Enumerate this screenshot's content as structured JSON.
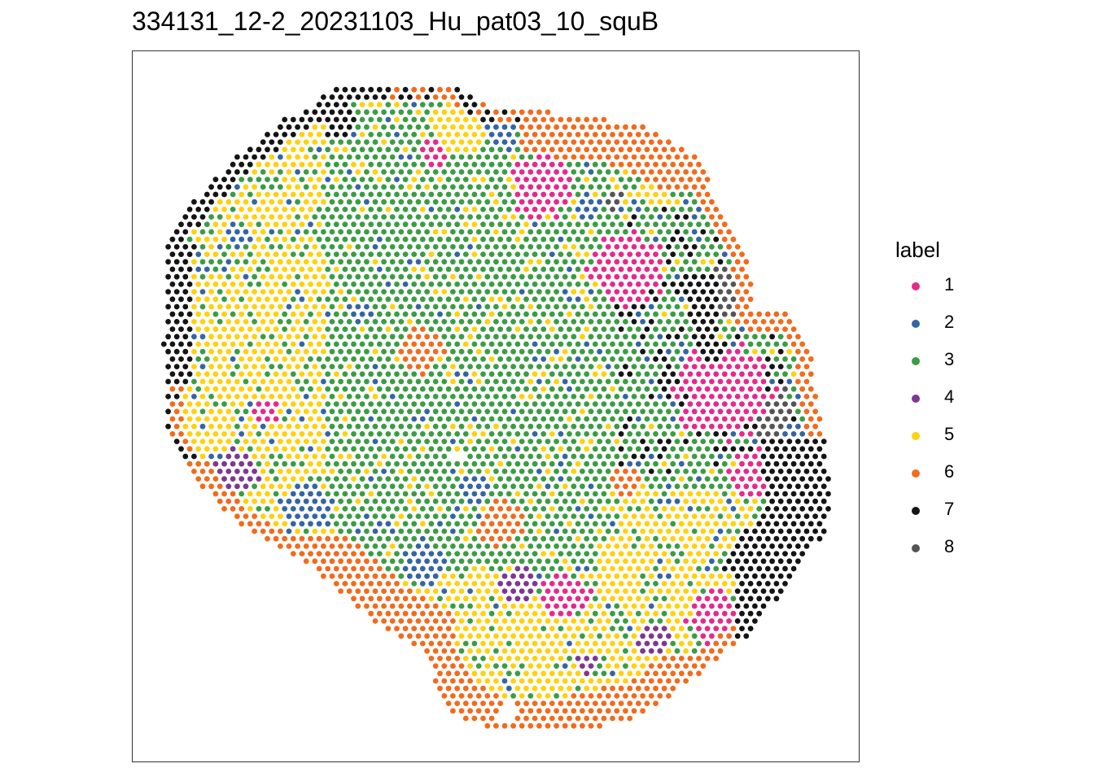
{
  "chart_data": {
    "type": "scatter",
    "title": "334131_12-2_20231103_Hu_pat03_10_squB",
    "legend": {
      "title": "label",
      "position": "right"
    },
    "grid": false,
    "categories": [
      "1",
      "2",
      "3",
      "4",
      "5",
      "6",
      "7",
      "8"
    ],
    "colors": {
      "1": "#E7298A",
      "2": "#3465A4",
      "3": "#3B9D43",
      "4": "#7E3792",
      "5": "#FFD10F",
      "6": "#F26B1D",
      "7": "#141414",
      "8": "#555555"
    },
    "layout_note": "Spatial spot map; each spot is a point with a cluster label. Spots are approximated by regional assignment of the hex-grid.",
    "xlim": [
      0,
      100
    ],
    "ylim": [
      0,
      100
    ],
    "regions": [
      {
        "label": "7",
        "desc": "outer left/top and right rim"
      },
      {
        "label": "6",
        "desc": "outer rims top-right and bottom"
      },
      {
        "label": "3",
        "desc": "central core"
      },
      {
        "label": "5",
        "desc": "left/bottom interior"
      },
      {
        "label": "1",
        "desc": "right interior and lower clusters"
      },
      {
        "label": "2",
        "desc": "scattered patches"
      },
      {
        "label": "4",
        "desc": "small patches lower-left and bottom"
      },
      {
        "label": "8",
        "desc": "right edge strip"
      }
    ]
  }
}
